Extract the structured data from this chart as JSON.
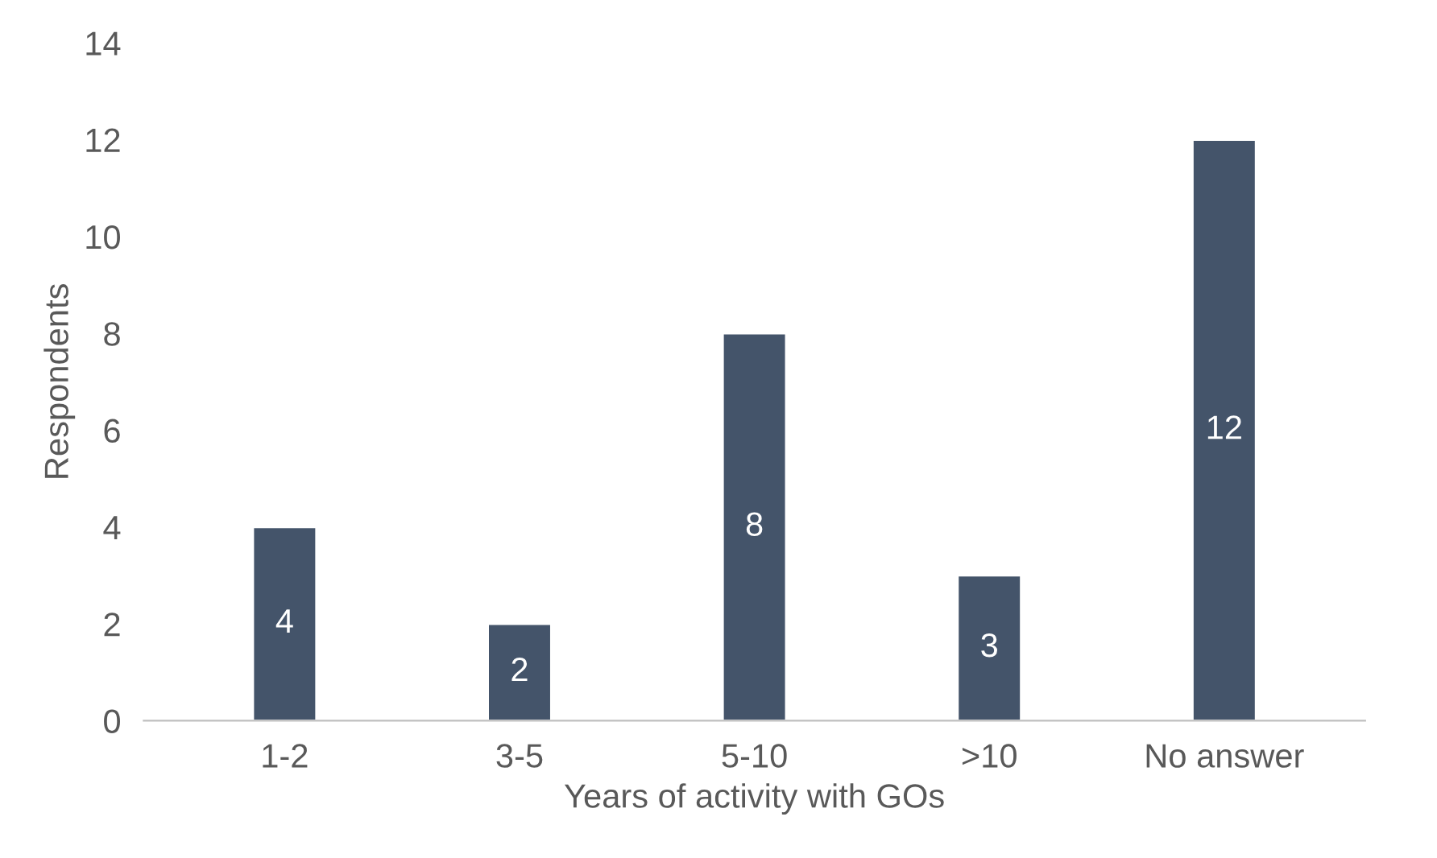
{
  "chart_data": {
    "type": "bar",
    "xlabel": "Years of activity with GOs",
    "ylabel": "Respondents",
    "categories": [
      "1-2",
      "3-5",
      "5-10",
      ">10",
      "No answer"
    ],
    "values": [
      4,
      2,
      8,
      3,
      12
    ],
    "color": "#44546a",
    "ylim": [
      0,
      14
    ],
    "yticks": [
      0,
      2,
      4,
      6,
      8,
      10,
      12,
      14
    ],
    "grid": false,
    "data_labels": true
  }
}
